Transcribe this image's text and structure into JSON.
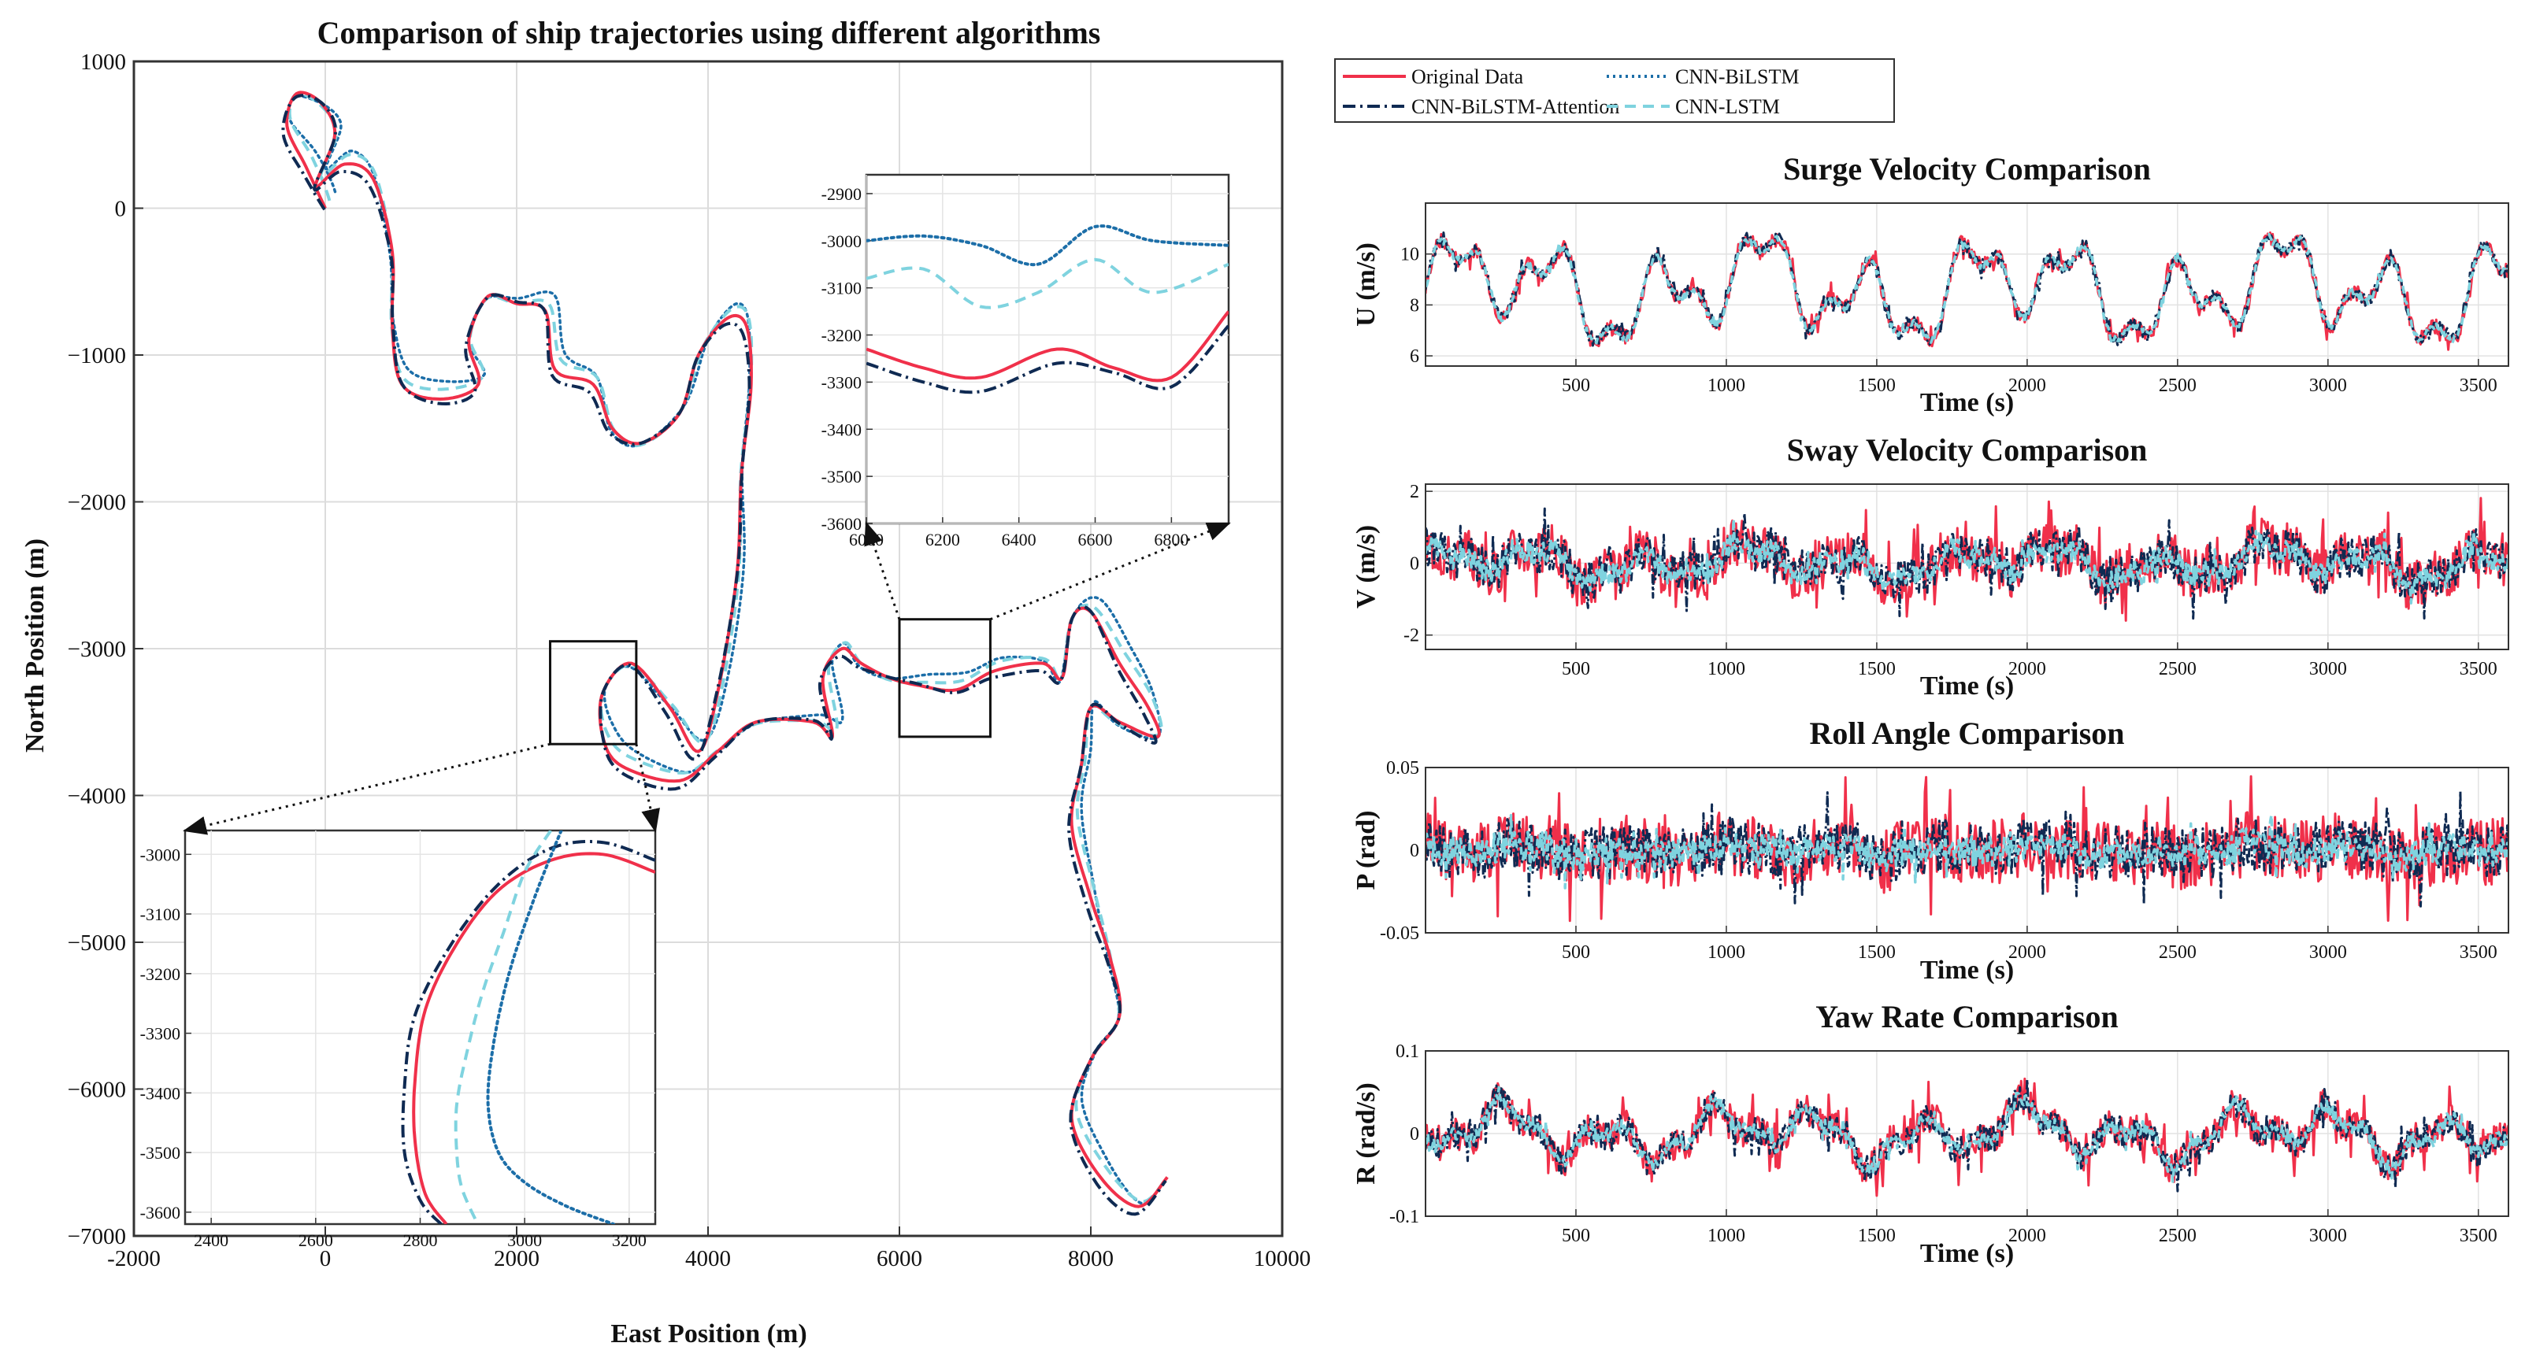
{
  "chart_data": [
    {
      "id": "trajectory",
      "type": "line",
      "title": "Comparison of ship trajectories using different algorithms",
      "xlabel": "East Position (m)",
      "ylabel": "North Position (m)",
      "xlim": [
        -2000,
        10000
      ],
      "ylim": [
        -7000,
        1000
      ],
      "xticks": [
        "-2000",
        "0",
        "2000",
        "4000",
        "6000",
        "8000",
        "10000"
      ],
      "yticks": [
        "1000",
        "0",
        "−1000",
        "−2000",
        "−3000",
        "−4000",
        "−5000",
        "−6000",
        "−7000"
      ],
      "grid": true,
      "series_names": [
        "Original Data",
        "CNN-BiLSTM-Attention",
        "CNN-BiLSTM",
        "CNN-LSTM"
      ],
      "waypoints": [
        [
          0,
          0
        ],
        [
          -200,
          280
        ],
        [
          -400,
          560
        ],
        [
          -300,
          780
        ],
        [
          -50,
          720
        ],
        [
          100,
          500
        ],
        [
          -100,
          150
        ],
        [
          200,
          300
        ],
        [
          500,
          200
        ],
        [
          700,
          -300
        ],
        [
          700,
          -800
        ],
        [
          800,
          -1200
        ],
        [
          1200,
          -1300
        ],
        [
          1600,
          -1200
        ],
        [
          1500,
          -900
        ],
        [
          1700,
          -600
        ],
        [
          2000,
          -650
        ],
        [
          2300,
          -700
        ],
        [
          2400,
          -1100
        ],
        [
          2800,
          -1200
        ],
        [
          3000,
          -1500
        ],
        [
          3300,
          -1600
        ],
        [
          3700,
          -1400
        ],
        [
          3900,
          -1000
        ],
        [
          4200,
          -750
        ],
        [
          4400,
          -800
        ],
        [
          4450,
          -1200
        ],
        [
          4350,
          -1800
        ],
        [
          4300,
          -2500
        ],
        [
          4100,
          -3300
        ],
        [
          3900,
          -3700
        ],
        [
          3600,
          -3400
        ],
        [
          3200,
          -3100
        ],
        [
          2900,
          -3300
        ],
        [
          2900,
          -3600
        ],
        [
          3100,
          -3800
        ],
        [
          3700,
          -3900
        ],
        [
          4100,
          -3700
        ],
        [
          4500,
          -3500
        ],
        [
          5100,
          -3500
        ],
        [
          5300,
          -3600
        ],
        [
          5200,
          -3200
        ],
        [
          5400,
          -3000
        ],
        [
          5600,
          -3100
        ],
        [
          5900,
          -3200
        ],
        [
          6200,
          -3250
        ],
        [
          6600,
          -3280
        ],
        [
          7000,
          -3150
        ],
        [
          7500,
          -3100
        ],
        [
          7700,
          -3200
        ],
        [
          7800,
          -2800
        ],
        [
          8000,
          -2750
        ],
        [
          8300,
          -3100
        ],
        [
          8600,
          -3400
        ],
        [
          8700,
          -3600
        ],
        [
          8300,
          -3500
        ],
        [
          8000,
          -3400
        ],
        [
          7900,
          -3800
        ],
        [
          7800,
          -4200
        ],
        [
          8000,
          -4700
        ],
        [
          8200,
          -5100
        ],
        [
          8300,
          -5500
        ],
        [
          8000,
          -5800
        ],
        [
          7800,
          -6200
        ],
        [
          8100,
          -6600
        ],
        [
          8500,
          -6800
        ],
        [
          8800,
          -6600
        ]
      ],
      "series_offsets": {
        "original": [
          0,
          0
        ],
        "attention": [
          -40,
          -55
        ],
        "bilstm": [
          110,
          120
        ],
        "lstm": [
          60,
          70
        ]
      },
      "colors": {
        "original": "#f0304a",
        "attention": "#0f2a52",
        "bilstm": "#1c6ea8",
        "lstm": "#7fd3df"
      },
      "zoom_boxes": [
        {
          "xlim": [
            2350,
            3250
          ],
          "ylim": [
            -3650,
            -2950
          ]
        },
        {
          "xlim": [
            6000,
            6950
          ],
          "ylim": [
            -3600,
            -2800
          ]
        }
      ]
    },
    {
      "id": "inset-left",
      "type": "line",
      "xlim": [
        2350,
        3250
      ],
      "ylim": [
        -3620,
        -2960
      ],
      "xticks": [
        "2400",
        "2600",
        "2800",
        "3000",
        "3200"
      ],
      "yticks": [
        "-3000",
        "-3100",
        "-3200",
        "-3300",
        "-3400",
        "-3500",
        "-3600"
      ],
      "series": [
        {
          "name": "Original Data",
          "x": [
            3250,
            3150,
            3050,
            2950,
            2870,
            2810,
            2790,
            2790,
            2810,
            2850
          ],
          "y": [
            -3030,
            -3000,
            -3010,
            -3060,
            -3150,
            -3260,
            -3380,
            -3480,
            -3570,
            -3620
          ]
        },
        {
          "name": "CNN-BiLSTM-Attention",
          "x": [
            3250,
            3150,
            3050,
            2950,
            2860,
            2790,
            2770,
            2770,
            2800,
            2840
          ],
          "y": [
            -3010,
            -2980,
            -2990,
            -3050,
            -3150,
            -3270,
            -3390,
            -3500,
            -3580,
            -3620
          ]
        },
        {
          "name": "CNN-LSTM",
          "x": [
            3050,
            3000,
            2960,
            2920,
            2890,
            2870,
            2870,
            2880,
            2910
          ],
          "y": [
            -2960,
            -3030,
            -3130,
            -3230,
            -3330,
            -3420,
            -3500,
            -3560,
            -3620
          ]
        },
        {
          "name": "CNN-BiLSTM",
          "x": [
            3070,
            3020,
            2970,
            2940,
            2930,
            2950,
            3000,
            3080,
            3170
          ],
          "y": [
            -2960,
            -3070,
            -3200,
            -3320,
            -3420,
            -3500,
            -3550,
            -3590,
            -3620
          ]
        }
      ]
    },
    {
      "id": "inset-right",
      "type": "line",
      "xlim": [
        6000,
        6950
      ],
      "ylim": [
        -3600,
        -2860
      ],
      "xticks": [
        "6000",
        "6200",
        "6400",
        "6600",
        "6800"
      ],
      "yticks": [
        "-2900",
        "-3000",
        "-3100",
        "-3200",
        "-3300",
        "-3400",
        "-3500",
        "-3600"
      ],
      "series": [
        {
          "name": "Original Data",
          "x": [
            6000,
            6150,
            6300,
            6500,
            6650,
            6800,
            6950
          ],
          "y": [
            -3230,
            -3270,
            -3290,
            -3230,
            -3270,
            -3290,
            -3150
          ]
        },
        {
          "name": "CNN-BiLSTM-Attention",
          "x": [
            6000,
            6150,
            6300,
            6500,
            6650,
            6800,
            6950
          ],
          "y": [
            -3260,
            -3300,
            -3320,
            -3260,
            -3280,
            -3310,
            -3180
          ]
        },
        {
          "name": "CNN-BiLSTM",
          "x": [
            6000,
            6150,
            6300,
            6450,
            6600,
            6750,
            6950
          ],
          "y": [
            -3000,
            -2990,
            -3010,
            -3050,
            -2970,
            -3000,
            -3010
          ]
        },
        {
          "name": "CNN-LSTM",
          "x": [
            6000,
            6150,
            6300,
            6450,
            6600,
            6750,
            6950
          ],
          "y": [
            -3080,
            -3060,
            -3140,
            -3110,
            -3040,
            -3110,
            -3050
          ]
        }
      ]
    },
    {
      "id": "surge",
      "type": "line",
      "title": "Surge Velocity Comparison",
      "ylabel": "U (m/s)",
      "xlabel": "Time (s)",
      "xlim": [
        0,
        3600
      ],
      "ylim": [
        5.6,
        12
      ],
      "center": 8.6,
      "amp": 2.2,
      "noise_amp": 0.3,
      "yticks": [
        {
          "v": 10,
          "label": "10"
        },
        {
          "v": 8,
          "label": "8"
        },
        {
          "v": 6,
          "label": "6"
        }
      ],
      "xticks": [
        "500",
        "1000",
        "1500",
        "2000",
        "2500",
        "3000",
        "3500"
      ]
    },
    {
      "id": "sway",
      "type": "line",
      "title": "Sway Velocity Comparison",
      "ylabel": "V (m/s)",
      "xlabel": "Time (s)",
      "xlim": [
        0,
        3600
      ],
      "ylim": [
        -2.4,
        2.2
      ],
      "center": 0,
      "amp": 0.55,
      "noise_amp": 0.7,
      "yticks": [
        {
          "v": 2,
          "label": "2"
        },
        {
          "v": 0,
          "label": "0"
        },
        {
          "v": -2,
          "label": "-2"
        }
      ],
      "xticks": [
        "500",
        "1000",
        "1500",
        "2000",
        "2500",
        "3000",
        "3500"
      ]
    },
    {
      "id": "roll",
      "type": "line",
      "title": "Roll Angle Comparison",
      "ylabel": "P (rad)",
      "xlabel": "Time (s)",
      "xlim": [
        0,
        3600
      ],
      "ylim": [
        -0.05,
        0.05
      ],
      "center": 0,
      "amp": 0.004,
      "noise_amp": 0.02,
      "yticks": [
        {
          "v": 0.05,
          "label": "0.05"
        },
        {
          "v": 0,
          "label": "0"
        },
        {
          "v": -0.05,
          "label": "-0.05"
        }
      ],
      "xticks": [
        "500",
        "1000",
        "1500",
        "2000",
        "2500",
        "3000",
        "3500"
      ]
    },
    {
      "id": "yaw",
      "type": "line",
      "title": "Yaw Rate Comparison",
      "ylabel": "R (rad/s)",
      "xlabel": "Time (s)",
      "xlim": [
        0,
        3600
      ],
      "ylim": [
        -0.1,
        0.1
      ],
      "center": 0,
      "amp": 0.035,
      "noise_amp": 0.02,
      "yticks": [
        {
          "v": 0.1,
          "label": "0.1"
        },
        {
          "v": 0,
          "label": "0"
        },
        {
          "v": -0.1,
          "label": "-0.1"
        }
      ],
      "xticks": [
        "500",
        "1000",
        "1500",
        "2000",
        "2500",
        "3000",
        "3500"
      ]
    }
  ],
  "legend": [
    {
      "name": "Original Data",
      "color": "#f0304a",
      "style": "solid"
    },
    {
      "name": "CNN-BiLSTM",
      "color": "#1c6ea8",
      "style": "dotted"
    },
    {
      "name": "CNN-BiLSTM-Attention",
      "color": "#0f2a52",
      "style": "dashdot"
    },
    {
      "name": "CNN-LSTM",
      "color": "#7fd3df",
      "style": "dashed"
    }
  ]
}
